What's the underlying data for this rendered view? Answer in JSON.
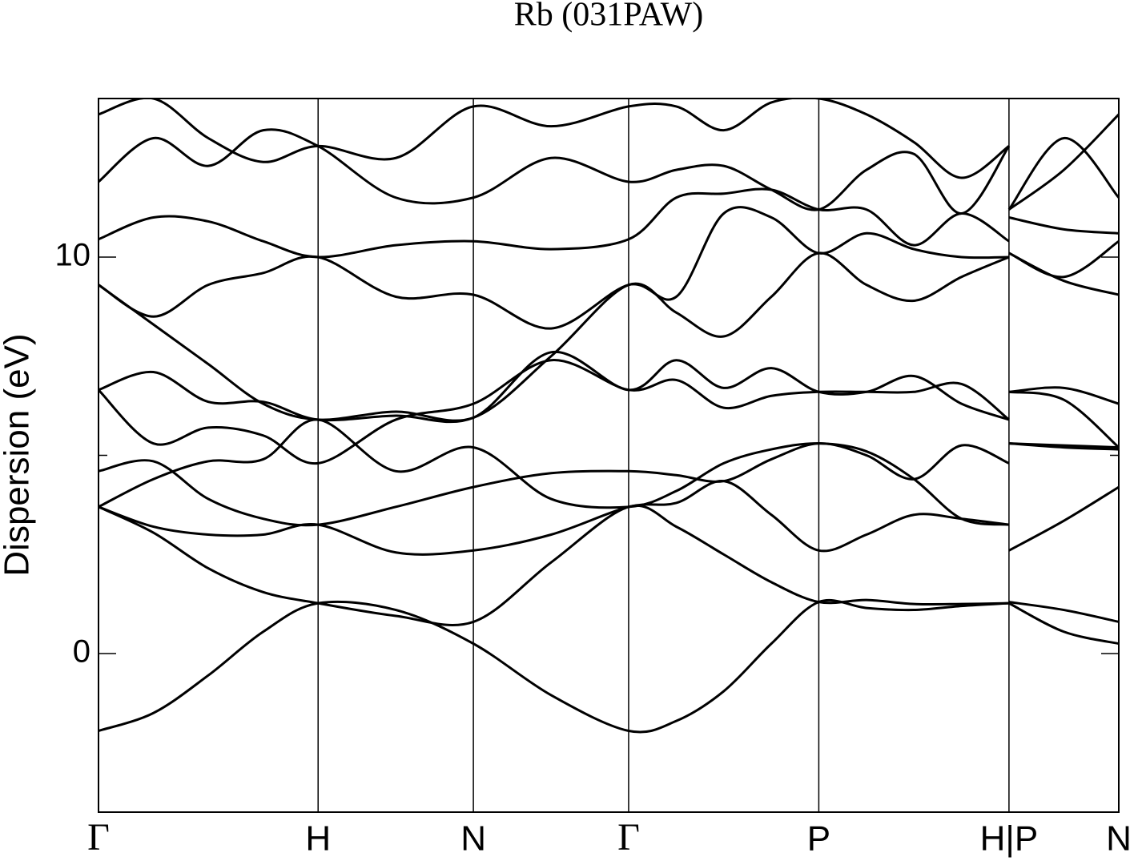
{
  "chart_data": {
    "type": "line",
    "title": "Rb (031PAW)",
    "y_label": "Dispersion (eV)",
    "color": "#000000",
    "xlim": [
      0,
      4.646
    ],
    "ylim": [
      -4,
      14
    ],
    "yticks": [
      0,
      10
    ],
    "yticks_minor": [
      5
    ],
    "xticks": [
      {
        "value": 0,
        "label": "Γ"
      },
      {
        "value": 1,
        "label": "H"
      },
      {
        "value": 1.707,
        "label": "N"
      },
      {
        "value": 2.414,
        "label": "Γ"
      },
      {
        "value": 3.28,
        "label": "P"
      },
      {
        "value": 4.146,
        "label": "H|P"
      },
      {
        "value": 4.646,
        "label": "N"
      }
    ],
    "x": [
      0,
      0.25,
      0.5,
      0.75,
      1,
      1.354,
      1.707,
      2.061,
      2.414,
      2.631,
      2.847,
      3.064,
      3.28,
      3.497,
      3.713,
      3.93,
      4.146,
      4.146,
      4.146,
      4.396,
      4.646
    ],
    "series": [
      {
        "values": [
          -1.95,
          -1.5,
          -0.55,
          0.55,
          1.27,
          1.1,
          0.25,
          -1.05,
          -1.95,
          -1.7,
          -0.95,
          0.25,
          1.3,
          1.15,
          1.1,
          1.2,
          1.27,
          null,
          1.27,
          0.55,
          0.25
        ]
      },
      {
        "values": [
          3.7,
          3.05,
          2.15,
          1.55,
          1.27,
          0.95,
          0.8,
          2.3,
          3.7,
          3.2,
          2.5,
          1.8,
          1.3,
          1.35,
          1.25,
          1.25,
          1.27,
          null,
          1.3,
          1.1,
          0.8
        ]
      },
      {
        "values": [
          3.7,
          3.2,
          3.0,
          3.0,
          3.25,
          2.55,
          2.6,
          3.0,
          3.7,
          3.8,
          4.35,
          3.5,
          2.6,
          3.0,
          3.5,
          3.4,
          3.25,
          null,
          2.6,
          3.35,
          4.2
        ]
      },
      {
        "values": [
          4.6,
          4.85,
          3.9,
          3.4,
          3.25,
          3.7,
          4.2,
          4.55,
          4.6,
          4.5,
          4.35,
          4.9,
          5.3,
          5.0,
          4.4,
          5.25,
          4.8,
          null,
          5.3,
          5.25,
          5.2
        ]
      },
      {
        "values": [
          3.7,
          4.4,
          4.85,
          4.9,
          5.9,
          4.6,
          5.2,
          3.9,
          3.7,
          4.1,
          4.8,
          5.15,
          5.3,
          5.1,
          4.4,
          3.4,
          3.25,
          null,
          5.3,
          5.2,
          5.15
        ]
      },
      {
        "values": [
          6.65,
          5.3,
          5.7,
          5.5,
          4.8,
          5.9,
          6.3,
          7.4,
          6.65,
          6.9,
          6.2,
          6.5,
          6.6,
          6.6,
          6.6,
          6.8,
          5.9,
          null,
          6.6,
          6.4,
          5.2
        ]
      },
      {
        "values": [
          6.65,
          7.1,
          6.35,
          6.35,
          5.9,
          6.0,
          5.95,
          7.6,
          6.65,
          7.4,
          6.7,
          7.2,
          6.6,
          6.6,
          7.0,
          6.3,
          5.9,
          null,
          6.6,
          6.7,
          6.3
        ]
      },
      {
        "values": [
          9.3,
          8.3,
          7.3,
          6.3,
          5.9,
          6.1,
          5.95,
          7.5,
          9.3,
          8.6,
          8.0,
          9.0,
          10.1,
          9.3,
          8.9,
          9.5,
          10.0,
          null,
          10.1,
          9.4,
          9.05
        ]
      },
      {
        "values": [
          9.3,
          8.5,
          9.3,
          9.6,
          10.0,
          9.0,
          9.05,
          8.2,
          9.3,
          9.0,
          11.1,
          11.0,
          10.1,
          10.6,
          10.2,
          10.0,
          10.0,
          null,
          10.1,
          9.5,
          10.4
        ]
      },
      {
        "values": [
          10.45,
          11.0,
          10.9,
          10.4,
          10.0,
          10.3,
          10.4,
          10.2,
          10.45,
          11.5,
          11.6,
          11.7,
          11.2,
          11.2,
          10.3,
          11.1,
          10.4,
          null,
          11.0,
          10.7,
          10.6
        ]
      },
      {
        "values": [
          11.9,
          13.0,
          12.3,
          13.2,
          12.8,
          11.5,
          11.5,
          12.5,
          11.9,
          12.2,
          12.3,
          11.7,
          11.2,
          12.2,
          12.6,
          11.1,
          12.8,
          null,
          11.2,
          13.0,
          11.5
        ]
      },
      {
        "values": [
          13.6,
          14,
          13.0,
          12.4,
          12.8,
          12.5,
          13.8,
          13.3,
          13.8,
          13.8,
          13.2,
          13.9,
          14,
          13.6,
          12.9,
          12.0,
          12.8,
          null,
          11.2,
          12.2,
          13.6
        ]
      }
    ]
  }
}
